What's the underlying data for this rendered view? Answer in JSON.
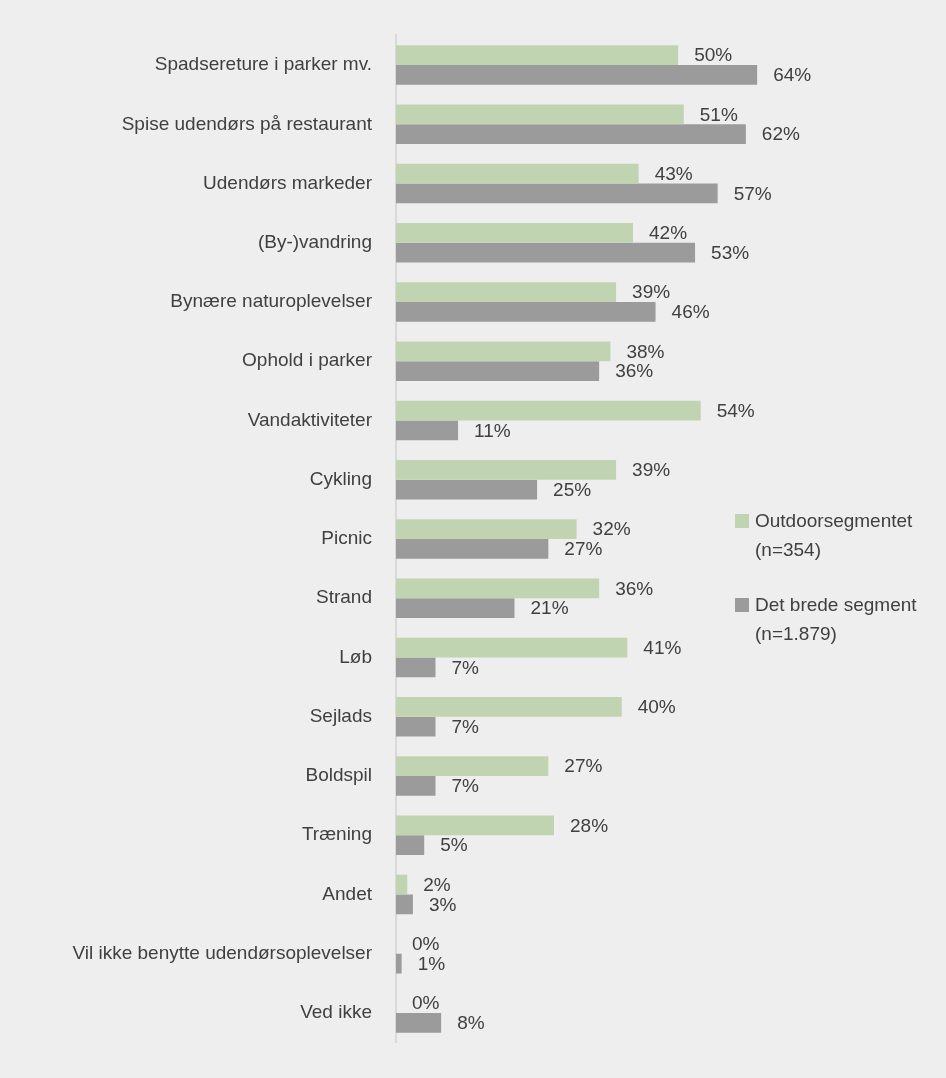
{
  "chart_data": {
    "type": "bar",
    "orientation": "horizontal",
    "grid": false,
    "legend": "right",
    "tick_labels": "y",
    "categories": [
      "Spadsereture i parker mv.",
      "Spise udendørs på restaurant",
      "Udendørs markeder",
      "(By-)vandring",
      "Bynære naturoplevelser",
      "Ophold i parker",
      "Vandaktiviteter",
      "Cykling",
      "Picnic",
      "Strand",
      "Løb",
      "Sejlads",
      "Boldspil",
      "Træning",
      "Andet",
      "Vil ikke benytte udendørsoplevelser",
      "Ved ikke"
    ],
    "series": [
      {
        "name": "Outdoorsegmentet (n=354)",
        "color": "#c0d4b2",
        "values": [
          50,
          51,
          43,
          42,
          39,
          38,
          54,
          39,
          32,
          36,
          41,
          40,
          27,
          28,
          2,
          0,
          0
        ],
        "value_labels": [
          "50%",
          "51%",
          "43%",
          "42%",
          "39%",
          "38%",
          "54%",
          "39%",
          "32%",
          "36%",
          "41%",
          "40%",
          "27%",
          "28%",
          "2%",
          "0%",
          "0%"
        ]
      },
      {
        "name": "Det brede segment (n=1.879)",
        "color": "#9b9b9b",
        "values": [
          64,
          62,
          57,
          53,
          46,
          36,
          11,
          25,
          27,
          21,
          7,
          7,
          7,
          5,
          3,
          1,
          8
        ],
        "value_labels": [
          "64%",
          "62%",
          "57%",
          "53%",
          "46%",
          "36%",
          "11%",
          "25%",
          "27%",
          "21%",
          "7%",
          "7%",
          "7%",
          "5%",
          "3%",
          "1%",
          "8%"
        ]
      }
    ]
  }
}
